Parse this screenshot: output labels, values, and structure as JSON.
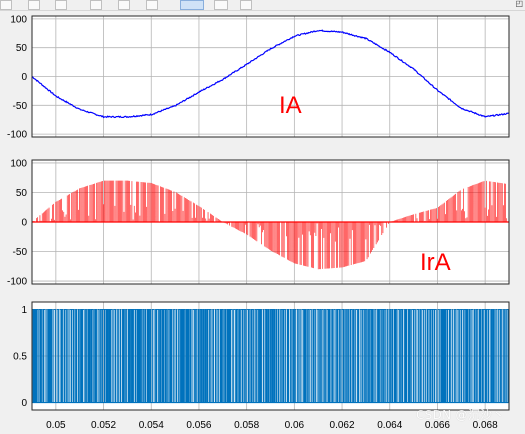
{
  "window": {
    "watermark": "CSDN @沉沙丶"
  },
  "colors": {
    "ia": "#0000ff",
    "ira": "#ff0000",
    "pulse": "#0072bd",
    "axes_bg": "#ffffff",
    "grid": "#b5b5b5",
    "annotation": "#ff0000"
  },
  "chart_data": [
    {
      "type": "line",
      "annotation": "IA",
      "xlim": [
        0.049,
        0.069
      ],
      "ylim": [
        -105,
        105
      ],
      "yticks": [
        "100",
        "50",
        "0",
        "-50",
        "-100"
      ],
      "grid": true,
      "series": [
        {
          "x": [
            0.049,
            0.05,
            0.051,
            0.052,
            0.053,
            0.054,
            0.055,
            0.056,
            0.057,
            0.058,
            0.059,
            0.06,
            0.061,
            0.062,
            0.063,
            0.064,
            0.065,
            0.066,
            0.067,
            0.068,
            0.069
          ],
          "values": [
            0,
            -34,
            -57,
            -70,
            -70,
            -66,
            -51,
            -27,
            -5,
            21,
            48,
            70,
            80,
            77,
            66,
            42,
            13,
            -24,
            -55,
            -70,
            -64
          ]
        }
      ]
    },
    {
      "type": "bar",
      "annotation": "IrA",
      "xlim": [
        0.049,
        0.069
      ],
      "ylim": [
        -105,
        105
      ],
      "yticks": [
        "100",
        "50",
        "0",
        "-50",
        "-100"
      ],
      "grid": true,
      "series": [
        {
          "x": [
            0.049,
            0.05,
            0.051,
            0.052,
            0.053,
            0.054,
            0.055,
            0.056,
            0.057,
            0.058,
            0.059,
            0.06,
            0.061,
            0.062,
            0.063,
            0.064,
            0.065,
            0.066,
            0.067,
            0.068,
            0.069
          ],
          "values": [
            0,
            34,
            57,
            70,
            70,
            66,
            51,
            27,
            0,
            -21,
            -48,
            -70,
            -80,
            -77,
            -66,
            0,
            13,
            24,
            55,
            70,
            64
          ]
        }
      ]
    },
    {
      "type": "bar",
      "xlim": [
        0.049,
        0.069
      ],
      "ylim": [
        -0.08,
        1.08
      ],
      "yticks": [
        "1",
        "0.5",
        "0"
      ],
      "grid": true,
      "xticks": [
        "0.05",
        "0.052",
        "0.054",
        "0.056",
        "0.058",
        "0.06",
        "0.062",
        "0.064",
        "0.066",
        "0.068"
      ],
      "series": [
        {
          "pulse_level": 1,
          "duty_cycle_approx": 0.5
        }
      ]
    }
  ]
}
